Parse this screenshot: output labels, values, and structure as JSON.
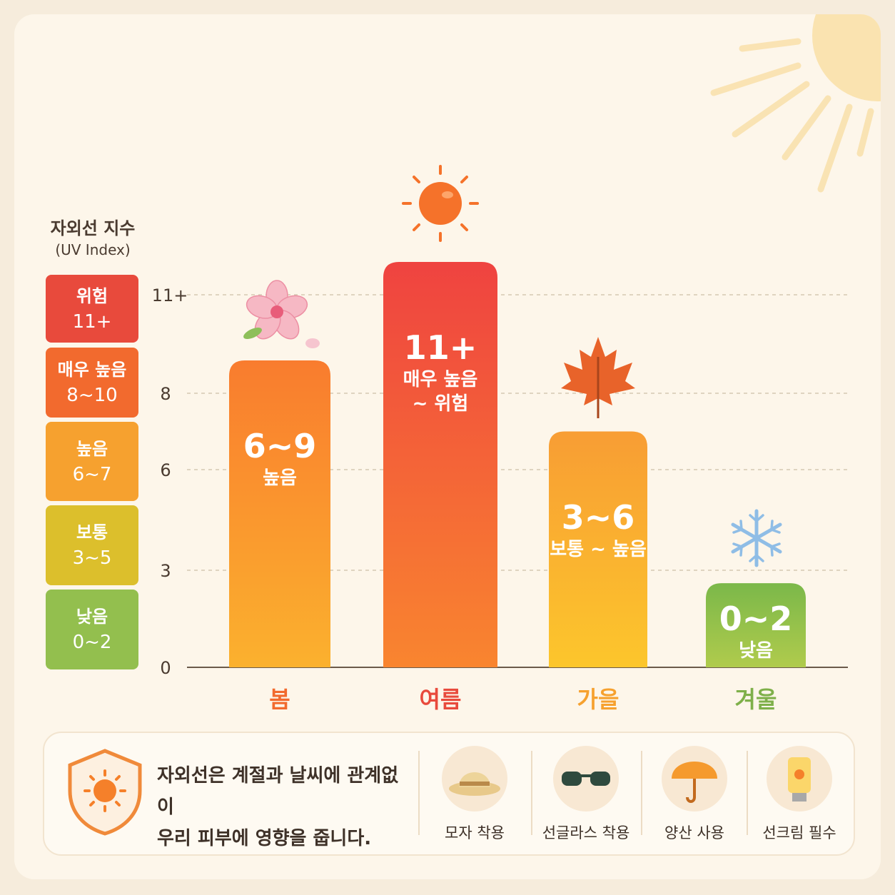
{
  "legend": {
    "title": "자외선 지수",
    "subtitle": "(UV Index)",
    "levels": [
      {
        "name": "위험",
        "range": "11+",
        "color": "#e84a3c"
      },
      {
        "name": "매우 높음",
        "range": "8~10",
        "color": "#f26a2e"
      },
      {
        "name": "높음",
        "range": "6~7",
        "color": "#f6a12f"
      },
      {
        "name": "보통",
        "range": "3~5",
        "color": "#dcbf2c"
      },
      {
        "name": "낮음",
        "range": "0~2",
        "color": "#93bf4e"
      }
    ]
  },
  "chart_data": {
    "type": "bar",
    "categories": [
      "봄",
      "여름",
      "가을",
      "겨울"
    ],
    "values": [
      9,
      12,
      7,
      2.6
    ],
    "value_labels": [
      "6~9",
      "11+",
      "3~6",
      "0~2"
    ],
    "sublabels": [
      "높음",
      "매우 높음\n~ 위험",
      "보통 ~ 높음",
      "낮음"
    ],
    "yticks": [
      0,
      3,
      6,
      8,
      11
    ],
    "ytick_labels": [
      "0",
      "3",
      "6",
      "8",
      "11+"
    ],
    "ylim": [
      0,
      13
    ],
    "grid": true,
    "category_colors": [
      "#f26a2e",
      "#e84a3c",
      "#f6a12f",
      "#7fb04a"
    ],
    "bar_gradients": [
      [
        "#f97c2e",
        "#fbb12e"
      ],
      [
        "#ef4340",
        "#f9852f"
      ],
      [
        "#f89d34",
        "#fcc62c"
      ],
      [
        "#7bb84a",
        "#b0cb4c"
      ]
    ],
    "icons": [
      "cherry-blossom-icon",
      "sun-icon",
      "maple-leaf-icon",
      "snowflake-icon"
    ]
  },
  "tip": {
    "lines": [
      "자외선은 계절과 날씨에 관계없이",
      "우리 피부에 영향을 줍니다."
    ],
    "items": [
      {
        "label": "모자 착용",
        "icon": "hat-icon"
      },
      {
        "label": "선글라스 착용",
        "icon": "sunglasses-icon"
      },
      {
        "label": "양산 사용",
        "icon": "umbrella-icon"
      },
      {
        "label": "선크림 필수",
        "icon": "sunscreen-icon"
      }
    ]
  }
}
